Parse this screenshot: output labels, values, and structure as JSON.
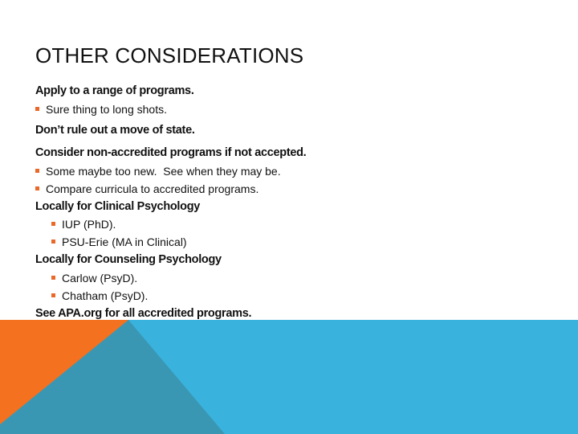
{
  "slide": {
    "title": "OTHER CONSIDERATIONS",
    "items": [
      {
        "type": "heading",
        "level": 0,
        "text": "Apply to a range of programs."
      },
      {
        "type": "bullet",
        "level": 1,
        "text": "Sure thing to long shots."
      },
      {
        "type": "heading",
        "level": 0,
        "text": "Don’t rule out a move of state."
      },
      {
        "type": "heading",
        "level": 0,
        "text": "Consider non-accredited programs if not accepted."
      },
      {
        "type": "bullet",
        "level": 1,
        "text": "Some maybe too new.  See when they may be."
      },
      {
        "type": "bullet",
        "level": 1,
        "text": "Compare curricula to accredited programs."
      },
      {
        "type": "heading",
        "level": 0,
        "text": "Locally for Clinical Psychology"
      },
      {
        "type": "bullet",
        "level": 2,
        "text": "IUP (PhD)."
      },
      {
        "type": "bullet",
        "level": 2,
        "text": "PSU-Erie (MA in Clinical)"
      },
      {
        "type": "heading",
        "level": 0,
        "text": "Locally for Counseling Psychology"
      },
      {
        "type": "bullet",
        "level": 2,
        "text": "Carlow (PsyD)."
      },
      {
        "type": "bullet",
        "level": 2,
        "text": "Chatham (PsyD)."
      },
      {
        "type": "heading",
        "level": 0,
        "text": "See APA.org for all accredited programs."
      }
    ]
  },
  "colors": {
    "accent_orange": "#f4711f",
    "accent_blue": "#3ab2de",
    "accent_teal": "#3a97b3",
    "bullet_marker": "#e8692a"
  }
}
